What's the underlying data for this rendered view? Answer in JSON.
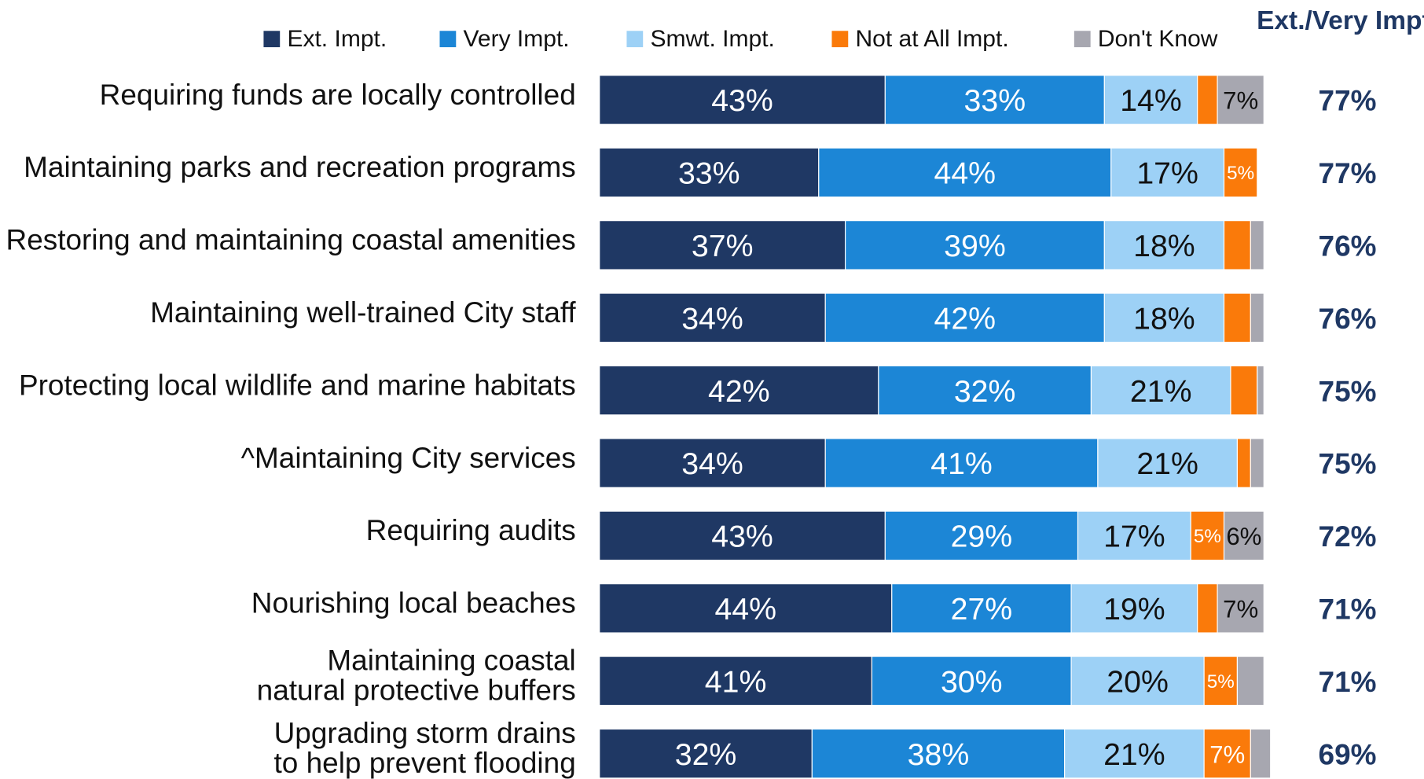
{
  "chart_data": {
    "type": "stacked-bar",
    "categories": [
      "Requiring funds are locally controlled",
      "Maintaining parks and recreation programs",
      "Restoring and maintaining coastal amenities",
      "Maintaining well-trained City staff",
      "Protecting local wildlife and marine habitats",
      "^Maintaining City services",
      "Requiring audits",
      "Nourishing local beaches",
      "Maintaining coastal natural protective buffers",
      "Upgrading storm drains to help prevent flooding"
    ],
    "series": [
      {
        "name": "Ext. Impt.",
        "color": "#1f3864",
        "values": [
          43,
          33,
          37,
          34,
          42,
          34,
          43,
          44,
          41,
          32
        ],
        "value_labels": [
          "43%",
          "33%",
          "37%",
          "34%",
          "42%",
          "34%",
          "43%",
          "44%",
          "41%",
          "32%"
        ]
      },
      {
        "name": "Very Impt.",
        "color": "#1c86d6",
        "values": [
          33,
          44,
          39,
          42,
          32,
          41,
          29,
          27,
          30,
          38
        ],
        "value_labels": [
          "33%",
          "44%",
          "39%",
          "42%",
          "32%",
          "41%",
          "29%",
          "27%",
          "30%",
          "38%"
        ]
      },
      {
        "name": "Smwt. Impt.",
        "color": "#9dd1f6",
        "values": [
          14,
          17,
          18,
          18,
          21,
          21,
          17,
          19,
          20,
          21
        ],
        "value_labels": [
          "14%",
          "17%",
          "18%",
          "18%",
          "21%",
          "21%",
          "17%",
          "19%",
          "20%",
          "21%"
        ]
      },
      {
        "name": "Not at All Impt.",
        "color": "#fa7a0a",
        "values": [
          3,
          5,
          4,
          4,
          4,
          2,
          5,
          3,
          5,
          7
        ],
        "value_labels": [
          null,
          "5%",
          null,
          null,
          null,
          null,
          "5%",
          null,
          "5%",
          "7%"
        ]
      },
      {
        "name": "Don't Know",
        "color": "#a7a7b0",
        "values": [
          7,
          0,
          2,
          2,
          1,
          2,
          6,
          7,
          4,
          3
        ],
        "value_labels": [
          "7%",
          null,
          null,
          null,
          null,
          null,
          "6%",
          "7%",
          null,
          null
        ]
      }
    ],
    "totals": {
      "name": "Ext./Very Impt.",
      "color": "#1f3864",
      "values": [
        77,
        77,
        76,
        76,
        75,
        75,
        72,
        71,
        71,
        69
      ],
      "value_labels": [
        "77%",
        "77%",
        "76%",
        "76%",
        "75%",
        "75%",
        "72%",
        "71%",
        "71%",
        "69%"
      ]
    }
  }
}
